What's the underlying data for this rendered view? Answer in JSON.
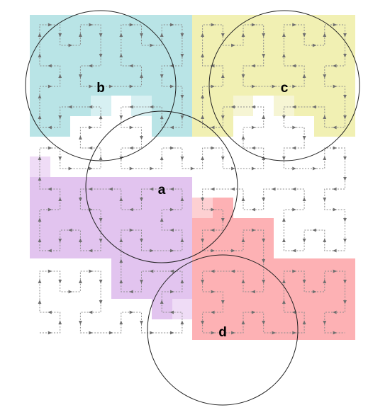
{
  "colors": {
    "background": "#ffffff",
    "cyan": "#b9e4e6",
    "cyan_light": "#d7f0f2",
    "yellow": "#f1f0b3",
    "yellow_light": "#f6f5d4",
    "purple": "#e2c4ef",
    "purple_light": "#efdcf6",
    "red": "#fdb1b4",
    "red_light": "#fdd0d2",
    "circle_stroke": "#222222",
    "curve_stroke": "#8c8c8c",
    "arrow_fill": "#6f6f6f"
  },
  "regions": [
    {
      "name": "cyan",
      "color_key": "cyan"
    },
    {
      "name": "yellow",
      "color_key": "yellow"
    },
    {
      "name": "purple",
      "color_key": "purple"
    },
    {
      "name": "red",
      "color_key": "red"
    }
  ],
  "circles": [
    {
      "id": "a",
      "label": "a"
    },
    {
      "id": "b",
      "label": "b"
    },
    {
      "id": "c",
      "label": "c"
    },
    {
      "id": "d",
      "label": "d"
    }
  ],
  "curve": {
    "type": "hilbert",
    "order": 4,
    "style": "dotted",
    "arrows": true
  }
}
